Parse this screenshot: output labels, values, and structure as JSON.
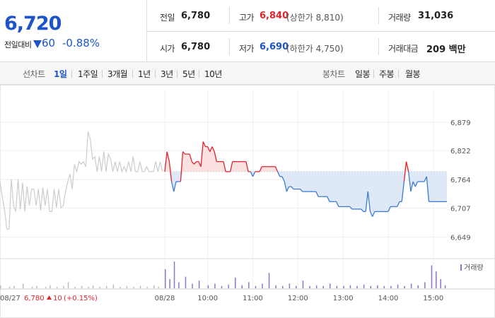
{
  "price": {
    "current": "6,720",
    "change_label": "전일대비",
    "change_amount": "60",
    "change_pct": "-0.88%",
    "change_color": "#1d55c8"
  },
  "stats": {
    "prev_close": {
      "label": "전일",
      "value": "6,780"
    },
    "high": {
      "label": "고가",
      "value": "6,840",
      "sub": "(상한가 8,810)",
      "color": "#e0232f"
    },
    "volume": {
      "label": "거래량",
      "value": "31,036"
    },
    "open": {
      "label": "시가",
      "value": "6,780"
    },
    "low": {
      "label": "저가",
      "value": "6,690",
      "sub": "(하한가 4,750)",
      "color": "#1d55c8"
    },
    "amount": {
      "label": "거래대금",
      "value": "209 백만"
    }
  },
  "tabs": {
    "line_title": "선차트",
    "line_tabs": [
      {
        "label": "1일",
        "active": true
      },
      {
        "label": "1주일",
        "active": false
      },
      {
        "label": "3개월",
        "active": false
      },
      {
        "label": "1년",
        "active": false
      },
      {
        "label": "3년",
        "active": false
      },
      {
        "label": "5년",
        "active": false
      },
      {
        "label": "10년",
        "active": false
      }
    ],
    "candle_title": "봉차트",
    "candle_tabs": [
      {
        "label": "일봉"
      },
      {
        "label": "주봉"
      },
      {
        "label": "월봉"
      }
    ]
  },
  "chart_data": {
    "type": "line",
    "title": "",
    "xlabel": "",
    "ylabel": "",
    "ylim": [
      6620,
      6900
    ],
    "y_ticks": [
      6879,
      6822,
      6764,
      6707,
      6649
    ],
    "y_tick_labels": [
      "6,879",
      "6,822",
      "6,764",
      "6,707",
      "6,649"
    ],
    "baseline": 6780,
    "x_tick_labels": [
      {
        "label": "08/27",
        "x": 0
      },
      {
        "label": "08/28",
        "x": 73
      },
      {
        "label": "10:00",
        "x": 92
      },
      {
        "label": "11:00",
        "x": 112
      },
      {
        "label": "12:00",
        "x": 132
      },
      {
        "label": "13:00",
        "x": 152
      },
      {
        "label": "14:00",
        "x": 172
      },
      {
        "label": "15:00",
        "x": 192
      }
    ],
    "prev_day_note": {
      "date": "08/27",
      "close": "6,780",
      "change": "10",
      "pct": "(+0.15%)",
      "color": "#e0232f"
    },
    "volume_legend": "거래량",
    "prev_day_series": {
      "name": "08/27",
      "color": "#cccccc",
      "x": [
        0,
        1,
        2,
        3,
        4,
        5,
        6,
        7,
        8,
        9,
        10,
        11,
        12,
        13,
        14,
        15,
        16,
        17,
        18,
        19,
        20,
        21,
        22,
        23,
        24,
        25,
        26,
        27,
        28,
        29,
        30,
        31,
        32,
        33,
        34,
        35,
        36,
        37,
        38,
        39,
        40,
        41,
        42,
        43,
        44,
        45,
        46,
        47,
        48,
        49,
        50,
        51,
        52,
        53,
        54,
        55,
        56,
        57,
        58,
        59,
        60,
        61,
        62,
        63,
        64,
        65,
        66,
        67,
        68,
        69,
        70,
        71,
        72
      ],
      "y": [
        6760,
        6730,
        6705,
        6665,
        6665,
        6765,
        6712,
        6700,
        6765,
        6704,
        6758,
        6700,
        6750,
        6712,
        6745,
        6745,
        6712,
        6745,
        6702,
        6748,
        6712,
        6745,
        6700,
        6700,
        6745,
        6708,
        6745,
        6708,
        6712,
        6740,
        6760,
        6775,
        6745,
        6795,
        6780,
        6800,
        6795,
        6800,
        6790,
        6860,
        6845,
        6805,
        6810,
        6780,
        6810,
        6780,
        6820,
        6780,
        6815,
        6805,
        6780,
        6800,
        6780,
        6800,
        6780,
        6790,
        6780,
        6800,
        6780,
        6810,
        6780,
        6780,
        6800,
        6780,
        6780,
        6790,
        6780,
        6780,
        6780,
        6800,
        6780,
        6800,
        6780
      ]
    },
    "today_series": {
      "name": "08/28",
      "up_color": "#e0232f",
      "down_color": "#3b7ad3",
      "x": [
        73,
        74,
        75,
        76,
        77,
        78,
        79,
        80,
        81,
        82,
        83,
        84,
        85,
        86,
        87,
        88,
        89,
        90,
        91,
        92,
        93,
        94,
        95,
        96,
        97,
        98,
        99,
        100,
        101,
        102,
        103,
        104,
        105,
        106,
        107,
        108,
        109,
        110,
        111,
        112,
        113,
        114,
        115,
        116,
        117,
        118,
        119,
        120,
        121,
        122,
        123,
        124,
        125,
        126,
        127,
        128,
        129,
        130,
        131,
        132,
        133,
        134,
        135,
        136,
        137,
        138,
        139,
        140,
        141,
        142,
        143,
        144,
        145,
        146,
        147,
        148,
        149,
        150,
        151,
        152,
        153,
        154,
        155,
        156,
        157,
        158,
        159,
        160,
        161,
        162,
        163,
        164,
        165,
        166,
        167,
        168,
        169,
        170,
        171,
        172,
        173,
        174,
        175,
        176,
        177,
        178,
        179,
        180,
        181,
        182,
        183,
        184,
        185,
        186,
        187,
        188,
        189,
        190,
        191,
        192,
        193,
        194,
        195,
        196,
        197,
        198
      ],
      "y": [
        6780,
        6820,
        6800,
        6760,
        6740,
        6760,
        6760,
        6760,
        6820,
        6815,
        6815,
        6815,
        6800,
        6795,
        6800,
        6800,
        6790,
        6840,
        6830,
        6830,
        6820,
        6830,
        6820,
        6800,
        6800,
        6800,
        6800,
        6780,
        6780,
        6780,
        6800,
        6800,
        6800,
        6800,
        6800,
        6800,
        6800,
        6780,
        6780,
        6770,
        6780,
        6780,
        6780,
        6790,
        6790,
        6790,
        6790,
        6790,
        6790,
        6790,
        6780,
        6770,
        6770,
        6760,
        6740,
        6750,
        6750,
        6745,
        6745,
        6745,
        6745,
        6740,
        6740,
        6740,
        6740,
        6740,
        6740,
        6740,
        6730,
        6730,
        6730,
        6730,
        6730,
        6720,
        6720,
        6720,
        6720,
        6710,
        6710,
        6710,
        6710,
        6710,
        6710,
        6705,
        6705,
        6705,
        6705,
        6705,
        6700,
        6700,
        6740,
        6700,
        6690,
        6700,
        6700,
        6700,
        6700,
        6700,
        6700,
        6700,
        6710,
        6710,
        6710,
        6710,
        6720,
        6720,
        6760,
        6800,
        6780,
        6740,
        6760,
        6750,
        6760,
        6760,
        6760,
        6760,
        6770,
        6720,
        6720,
        6720,
        6720,
        6720,
        6720,
        6720,
        6720,
        6720
      ]
    },
    "volume_series": {
      "name": "거래량",
      "color": "#bbbbbb",
      "today_color": "#8c75c9",
      "x": [
        0,
        4,
        6,
        10,
        14,
        16,
        20,
        22,
        25,
        28,
        30,
        33,
        36,
        39,
        41,
        44,
        47,
        50,
        53,
        56,
        59,
        62,
        65,
        68,
        70,
        73,
        75,
        77,
        79,
        82,
        85,
        88,
        92,
        95,
        98,
        101,
        104,
        107,
        110,
        113,
        116,
        119,
        122,
        125,
        128,
        131,
        134,
        137,
        140,
        143,
        146,
        149,
        152,
        155,
        158,
        161,
        164,
        167,
        170,
        173,
        176,
        179,
        182,
        185,
        188,
        191,
        193,
        195,
        197
      ],
      "y": [
        4,
        2,
        3,
        6,
        2,
        3,
        2,
        4,
        2,
        3,
        8,
        2,
        3,
        2,
        4,
        2,
        3,
        5,
        2,
        3,
        2,
        3,
        2,
        4,
        2,
        25,
        12,
        35,
        8,
        15,
        6,
        10,
        4,
        6,
        3,
        5,
        14,
        4,
        8,
        3,
        6,
        20,
        4,
        3,
        6,
        3,
        10,
        3,
        4,
        3,
        6,
        3,
        3,
        4,
        3,
        5,
        3,
        4,
        3,
        3,
        5,
        3,
        6,
        4,
        8,
        30,
        22,
        12,
        4
      ]
    }
  }
}
